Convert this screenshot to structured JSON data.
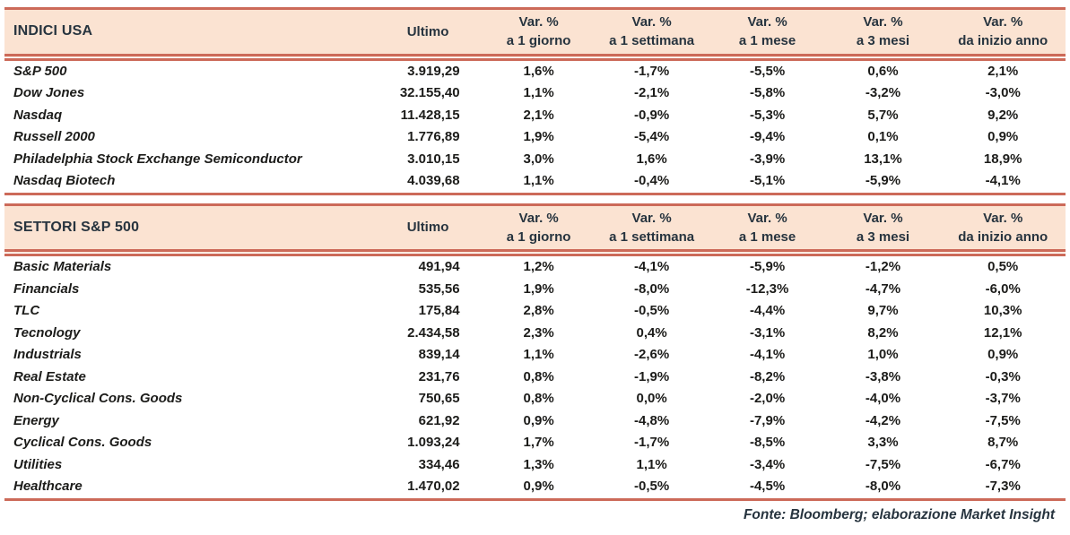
{
  "colors": {
    "header_bg": "#fbe3d2",
    "rule_line": "#cc6a59",
    "header_text": "#27343f",
    "body_text": "#1c1c1a"
  },
  "tables": [
    {
      "title": "INDICI USA",
      "ultimo_label": "Ultimo",
      "var_columns": [
        {
          "line1": "Var. %",
          "line2": "a 1 giorno"
        },
        {
          "line1": "Var. %",
          "line2": "a 1 settimana"
        },
        {
          "line1": "Var. %",
          "line2": "a 1 mese"
        },
        {
          "line1": "Var. %",
          "line2": "a 3 mesi"
        },
        {
          "line1": "Var. %",
          "line2": "da inizio anno"
        }
      ],
      "rows": [
        [
          "S&P 500",
          "3.919,29",
          "1,6%",
          "-1,7%",
          "-5,5%",
          "0,6%",
          "2,1%"
        ],
        [
          "Dow Jones",
          "32.155,40",
          "1,1%",
          "-2,1%",
          "-5,8%",
          "-3,2%",
          "-3,0%"
        ],
        [
          "Nasdaq",
          "11.428,15",
          "2,1%",
          "-0,9%",
          "-5,3%",
          "5,7%",
          "9,2%"
        ],
        [
          "Russell 2000",
          "1.776,89",
          "1,9%",
          "-5,4%",
          "-9,4%",
          "0,1%",
          "0,9%"
        ],
        [
          "Philadelphia Stock Exchange Semiconductor",
          "3.010,15",
          "3,0%",
          "1,6%",
          "-3,9%",
          "13,1%",
          "18,9%"
        ],
        [
          "Nasdaq Biotech",
          "4.039,68",
          "1,1%",
          "-0,4%",
          "-5,1%",
          "-5,9%",
          "-4,1%"
        ]
      ]
    },
    {
      "title": "SETTORI S&P 500",
      "ultimo_label": "Ultimo",
      "var_columns": [
        {
          "line1": "Var. %",
          "line2": "a 1 giorno"
        },
        {
          "line1": "Var. %",
          "line2": "a 1 settimana"
        },
        {
          "line1": "Var. %",
          "line2": "a 1 mese"
        },
        {
          "line1": "Var. %",
          "line2": "a 3 mesi"
        },
        {
          "line1": "Var. %",
          "line2": "da inizio anno"
        }
      ],
      "rows": [
        [
          "Basic Materials",
          "491,94",
          "1,2%",
          "-4,1%",
          "-5,9%",
          "-1,2%",
          "0,5%"
        ],
        [
          "Financials",
          "535,56",
          "1,9%",
          "-8,0%",
          "-12,3%",
          "-4,7%",
          "-6,0%"
        ],
        [
          "TLC",
          "175,84",
          "2,8%",
          "-0,5%",
          "-4,4%",
          "9,7%",
          "10,3%"
        ],
        [
          "Tecnology",
          "2.434,58",
          "2,3%",
          "0,4%",
          "-3,1%",
          "8,2%",
          "12,1%"
        ],
        [
          "Industrials",
          "839,14",
          "1,1%",
          "-2,6%",
          "-4,1%",
          "1,0%",
          "0,9%"
        ],
        [
          "Real Estate",
          "231,76",
          "0,8%",
          "-1,9%",
          "-8,2%",
          "-3,8%",
          "-0,3%"
        ],
        [
          "Non-Cyclical Cons. Goods",
          "750,65",
          "0,8%",
          "0,0%",
          "-2,0%",
          "-4,0%",
          "-3,7%"
        ],
        [
          "Energy",
          "621,92",
          "0,9%",
          "-4,8%",
          "-7,9%",
          "-4,2%",
          "-7,5%"
        ],
        [
          "Cyclical Cons. Goods",
          "1.093,24",
          "1,7%",
          "-1,7%",
          "-8,5%",
          "3,3%",
          "8,7%"
        ],
        [
          "Utilities",
          "334,46",
          "1,3%",
          "1,1%",
          "-3,4%",
          "-7,5%",
          "-6,7%"
        ],
        [
          "Healthcare",
          "1.470,02",
          "0,9%",
          "-0,5%",
          "-4,5%",
          "-8,0%",
          "-7,3%"
        ]
      ]
    }
  ],
  "footer": {
    "text": "Fonte: Bloomberg; elaborazione Market Insight"
  }
}
